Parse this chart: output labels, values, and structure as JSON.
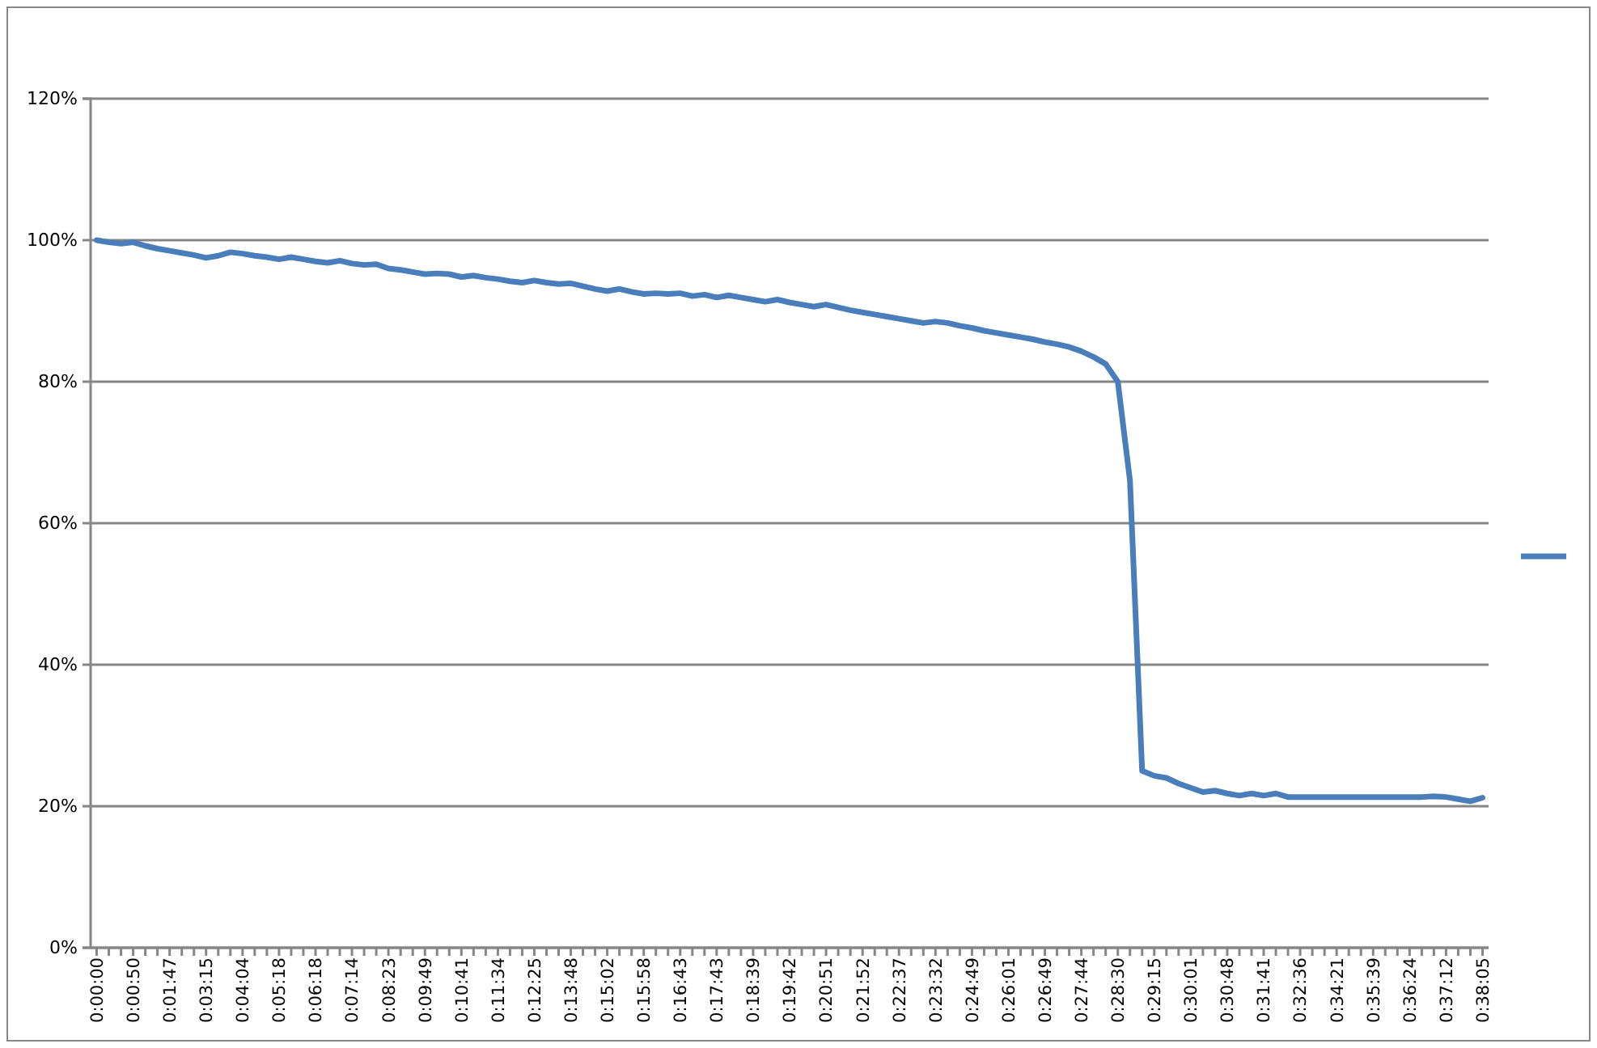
{
  "chart_data": {
    "type": "line",
    "categories": [
      "0:00:00",
      null,
      null,
      "0:00:50",
      null,
      null,
      "0:01:47",
      null,
      null,
      "0:03:15",
      null,
      null,
      "0:04:04",
      null,
      null,
      "0:05:18",
      null,
      null,
      "0:06:18",
      null,
      null,
      "0:07:14",
      null,
      null,
      "0:08:23",
      null,
      null,
      "0:09:49",
      null,
      null,
      "0:10:41",
      null,
      null,
      "0:11:34",
      null,
      null,
      "0:12:25",
      null,
      null,
      "0:13:48",
      null,
      null,
      "0:15:02",
      null,
      null,
      "0:15:58",
      null,
      null,
      "0:16:43",
      null,
      null,
      "0:17:43",
      null,
      null,
      "0:18:39",
      null,
      null,
      "0:19:42",
      null,
      null,
      "0:20:51",
      null,
      null,
      "0:21:52",
      null,
      null,
      "0:22:37",
      null,
      null,
      "0:23:32",
      null,
      null,
      "0:24:49",
      null,
      null,
      "0:26:01",
      null,
      null,
      "0:26:49",
      null,
      null,
      "0:27:44",
      null,
      null,
      "0:28:30",
      null,
      null,
      "0:29:15",
      null,
      null,
      "0:30:01",
      null,
      null,
      "0:30:48",
      null,
      null,
      "0:31:41",
      null,
      null,
      "0:32:36",
      null,
      null,
      "0:34:21",
      null,
      null,
      "0:35:39",
      null,
      null,
      "0:36:24",
      null,
      null,
      "0:37:12",
      null,
      null,
      "0:38:05"
    ],
    "series": [
      {
        "color": "#4a7ebb",
        "values": [
          100,
          99.7,
          99.5,
          99.7,
          99.2,
          98.8,
          98.5,
          98.2,
          97.9,
          97.5,
          97.8,
          98.3,
          98.1,
          97.8,
          97.6,
          97.3,
          97.6,
          97.3,
          97.0,
          96.8,
          97.1,
          96.7,
          96.5,
          96.6,
          96.0,
          95.8,
          95.5,
          95.2,
          95.3,
          95.2,
          94.8,
          95.0,
          94.7,
          94.5,
          94.2,
          94.0,
          94.3,
          94.0,
          93.8,
          93.9,
          93.5,
          93.1,
          92.8,
          93.1,
          92.7,
          92.4,
          92.5,
          92.4,
          92.5,
          92.1,
          92.3,
          91.9,
          92.2,
          91.9,
          91.6,
          91.3,
          91.6,
          91.2,
          90.9,
          90.6,
          90.9,
          90.5,
          90.1,
          89.8,
          89.5,
          89.2,
          88.9,
          88.6,
          88.3,
          88.5,
          88.3,
          87.9,
          87.6,
          87.2,
          86.9,
          86.6,
          86.3,
          86.0,
          85.6,
          85.3,
          84.9,
          84.3,
          83.5,
          82.5,
          80.0,
          66,
          25,
          24.3,
          24.0,
          23.2,
          22.6,
          22.0,
          22.2,
          21.8,
          21.5,
          21.8,
          21.5,
          21.8,
          21.3,
          21.3,
          21.3,
          21.3,
          21.3,
          21.3,
          21.3,
          21.3,
          21.3,
          21.3,
          21.3,
          21.3,
          21.4,
          21.3,
          21.0,
          20.7,
          21.2
        ]
      }
    ],
    "ylim": [
      0,
      120
    ],
    "yticks": [
      {
        "value": 0,
        "label": "0%"
      },
      {
        "value": 20,
        "label": "20%"
      },
      {
        "value": 40,
        "label": "40%"
      },
      {
        "value": 60,
        "label": "60%"
      },
      {
        "value": 80,
        "label": "80%"
      },
      {
        "value": 100,
        "label": "100%"
      },
      {
        "value": 120,
        "label": "120%"
      }
    ],
    "grid": "y",
    "marker": "none",
    "line_style": "solid"
  }
}
